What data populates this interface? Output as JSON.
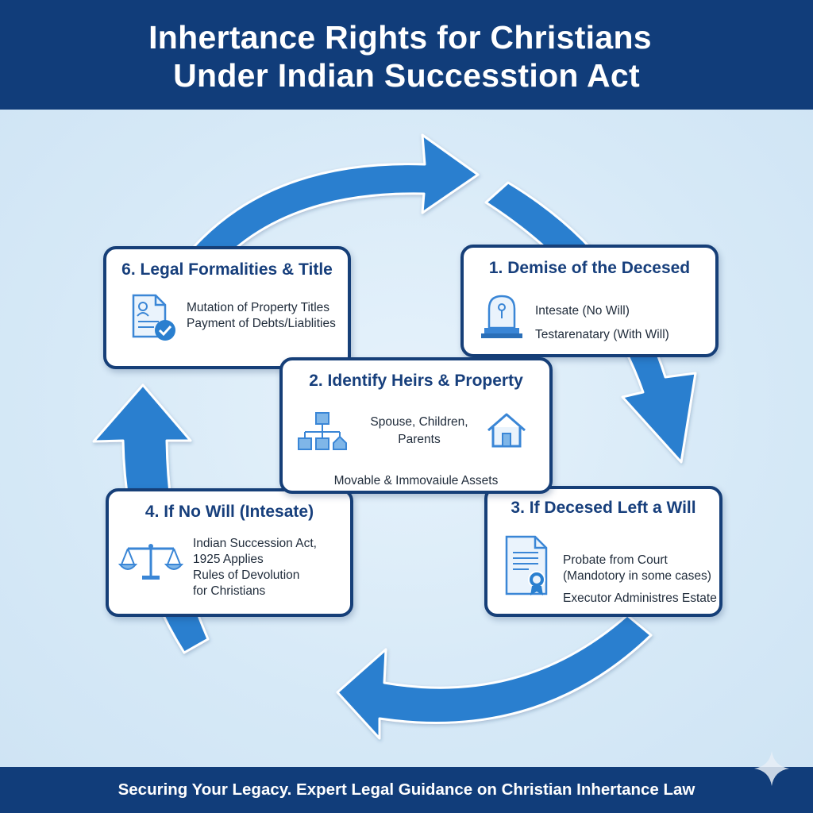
{
  "header": {
    "title_line1": "Inhertance Rights for Christians",
    "title_line2": "Under Indian Successtion Act"
  },
  "steps": {
    "step1": {
      "title": "1. Demise of the Decesed",
      "lines": [
        "Intesate (No Will)",
        "Testarenatary (With Will)"
      ],
      "icon": "tombstone-icon"
    },
    "step2": {
      "title": "2. Identify Heirs & Property",
      "heirs_line1": "Spouse, Children,",
      "heirs_line2": "Parents",
      "assets": "Movable & Immovaiule Assets",
      "icons": [
        "family-tree-icon",
        "house-icon"
      ]
    },
    "step3": {
      "title": "3. If Decesed Left a Will",
      "lines": [
        "Probate from Court",
        "(Mandotory in some cases)",
        "Executor Administres Estate"
      ],
      "icon": "certificate-document-icon"
    },
    "step4": {
      "title": "4. If No Will (Intesate)",
      "lines": [
        "Indian Succession Act,",
        "1925 Applies",
        "Rules of Devolution",
        "for Christians"
      ],
      "icon": "scales-of-justice-icon"
    },
    "step6": {
      "title": "6. Legal Formalities & Title",
      "lines": [
        "Mutation of Property Titles",
        "Payment of Debts/Liablities"
      ],
      "icon": "document-check-icon"
    }
  },
  "footer": {
    "text": "Securing Your Legacy. Expert Legal Guidance on Christian Inhertance Law"
  },
  "colors": {
    "header_bg": "#113d7a",
    "arrow_blue": "#2a7fcf",
    "box_border": "#163f78",
    "icon_blue": "#3a86d6",
    "background": "#d5e8f6"
  }
}
